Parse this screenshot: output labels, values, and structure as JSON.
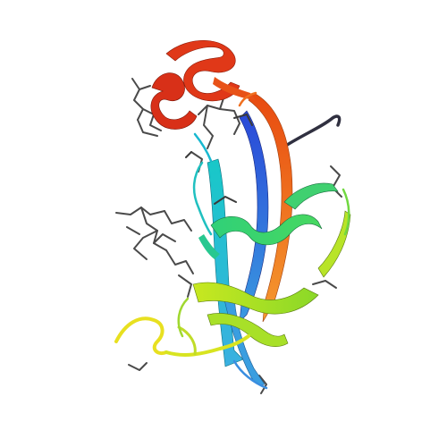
{
  "scene": {
    "background": "#ffffff",
    "depiction": "protein-cartoon-ribbon",
    "ribbon_gradient": [
      "#e02810",
      "#f07a18",
      "#f5e020",
      "#a8e020",
      "#38d878",
      "#20c8c0",
      "#3a80e8",
      "#2040d0"
    ],
    "stick_color": "#3a3a3a",
    "label_text": []
  }
}
